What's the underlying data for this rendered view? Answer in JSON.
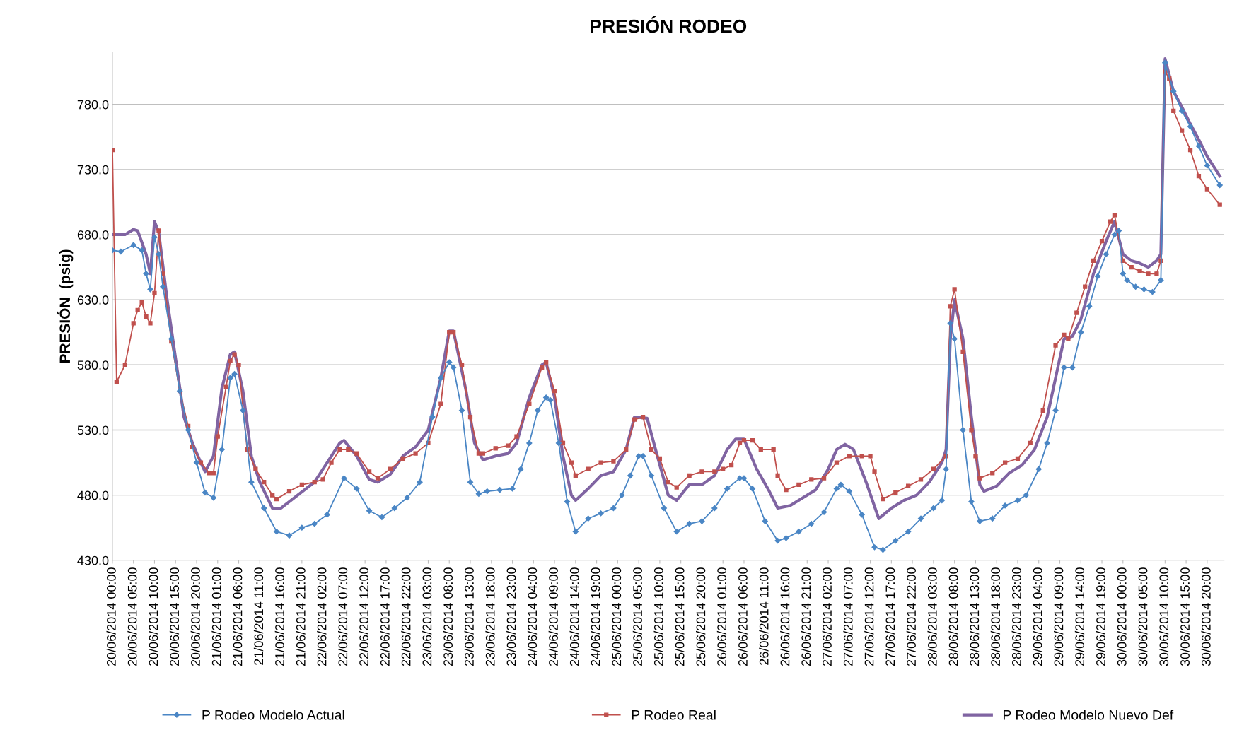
{
  "chart_data": {
    "type": "line",
    "title": "PRESIÓN RODEO",
    "ylabel": "PRESIÓN  (psig)",
    "ylim": [
      430,
      820
    ],
    "yticks": [
      {
        "value": 430,
        "label": "430.0"
      },
      {
        "value": 480,
        "label": "480.0"
      },
      {
        "value": 530,
        "label": "530.0"
      },
      {
        "value": 580,
        "label": "580.0"
      },
      {
        "value": 630,
        "label": "630.0"
      },
      {
        "value": 680,
        "label": "680.0"
      },
      {
        "value": 730,
        "label": "730.0"
      },
      {
        "value": 780,
        "label": "780.0"
      }
    ],
    "xlim": [
      "2014-06-20T00:00",
      "2014-07-01T00:00"
    ],
    "xticks": [
      {
        "value": "2014-06-20T00:00",
        "label": "20/06/2014 00:00"
      },
      {
        "value": "2014-06-20T05:00",
        "label": "20/06/2014 05:00"
      },
      {
        "value": "2014-06-20T10:00",
        "label": "20/06/2014 10:00"
      },
      {
        "value": "2014-06-20T15:00",
        "label": "20/06/2014 15:00"
      },
      {
        "value": "2014-06-20T20:00",
        "label": "20/06/2014 20:00"
      },
      {
        "value": "2014-06-21T01:00",
        "label": "21/06/2014 01:00"
      },
      {
        "value": "2014-06-21T06:00",
        "label": "21/06/2014 06:00"
      },
      {
        "value": "2014-06-21T11:00",
        "label": "21/06/2014 11:00"
      },
      {
        "value": "2014-06-21T16:00",
        "label": "21/06/2014 16:00"
      },
      {
        "value": "2014-06-21T21:00",
        "label": "21/06/2014 21:00"
      },
      {
        "value": "2014-06-22T02:00",
        "label": "22/06/2014 02:00"
      },
      {
        "value": "2014-06-22T07:00",
        "label": "22/06/2014 07:00"
      },
      {
        "value": "2014-06-22T12:00",
        "label": "22/06/2014 12:00"
      },
      {
        "value": "2014-06-22T17:00",
        "label": "22/06/2014 17:00"
      },
      {
        "value": "2014-06-22T22:00",
        "label": "22/06/2014 22:00"
      },
      {
        "value": "2014-06-23T03:00",
        "label": "23/06/2014 03:00"
      },
      {
        "value": "2014-06-23T08:00",
        "label": "23/06/2014 08:00"
      },
      {
        "value": "2014-06-23T13:00",
        "label": "23/06/2014 13:00"
      },
      {
        "value": "2014-06-23T18:00",
        "label": "23/06/2014 18:00"
      },
      {
        "value": "2014-06-23T23:00",
        "label": "23/06/2014 23:00"
      },
      {
        "value": "2014-06-24T04:00",
        "label": "24/06/2014 04:00"
      },
      {
        "value": "2014-06-24T09:00",
        "label": "24/06/2014 09:00"
      },
      {
        "value": "2014-06-24T14:00",
        "label": "24/06/2014 14:00"
      },
      {
        "value": "2014-06-24T19:00",
        "label": "24/06/2014 19:00"
      },
      {
        "value": "2014-06-25T00:00",
        "label": "25/06/2014 00:00"
      },
      {
        "value": "2014-06-25T05:00",
        "label": "25/06/2014 05:00"
      },
      {
        "value": "2014-06-25T10:00",
        "label": "25/06/2014 10:00"
      },
      {
        "value": "2014-06-25T15:00",
        "label": "25/06/2014 15:00"
      },
      {
        "value": "2014-06-25T20:00",
        "label": "25/06/2014 20:00"
      },
      {
        "value": "2014-06-26T01:00",
        "label": "26/06/2014 01:00"
      },
      {
        "value": "2014-06-26T06:00",
        "label": "26/06/2014 06:00"
      },
      {
        "value": "2014-06-26T11:00",
        "label": "26/06/2014 11:00"
      },
      {
        "value": "2014-06-26T16:00",
        "label": "26/06/2014 16:00"
      },
      {
        "value": "2014-06-26T21:00",
        "label": "26/06/2014 21:00"
      },
      {
        "value": "2014-06-27T02:00",
        "label": "27/06/2014 02:00"
      },
      {
        "value": "2014-06-27T07:00",
        "label": "27/06/2014 07:00"
      },
      {
        "value": "2014-06-27T12:00",
        "label": "27/06/2014 12:00"
      },
      {
        "value": "2014-06-27T17:00",
        "label": "27/06/2014 17:00"
      },
      {
        "value": "2014-06-27T22:00",
        "label": "27/06/2014 22:00"
      },
      {
        "value": "2014-06-28T03:00",
        "label": "28/06/2014 03:00"
      },
      {
        "value": "2014-06-28T08:00",
        "label": "28/06/2014 08:00"
      },
      {
        "value": "2014-06-28T13:00",
        "label": "28/06/2014 13:00"
      },
      {
        "value": "2014-06-28T18:00",
        "label": "28/06/2014 18:00"
      },
      {
        "value": "2014-06-28T23:00",
        "label": "28/06/2014 23:00"
      },
      {
        "value": "2014-06-29T04:00",
        "label": "29/06/2014 04:00"
      },
      {
        "value": "2014-06-29T09:00",
        "label": "29/06/2014 09:00"
      },
      {
        "value": "2014-06-29T14:00",
        "label": "29/06/2014 14:00"
      },
      {
        "value": "2014-06-29T19:00",
        "label": "29/06/2014 19:00"
      },
      {
        "value": "2014-06-30T00:00",
        "label": "30/06/2014 00:00"
      },
      {
        "value": "2014-06-30T05:00",
        "label": "30/06/2014 05:00"
      },
      {
        "value": "2014-06-30T10:00",
        "label": "30/06/2014 10:00"
      },
      {
        "value": "2014-06-30T15:00",
        "label": "30/06/2014 15:00"
      },
      {
        "value": "2014-06-30T20:00",
        "label": "30/06/2014 20:00"
      }
    ],
    "grid": "y",
    "legend": "bottom",
    "series": [
      {
        "name": "P Rodeo Modelo Actual",
        "color": "#4a86c5",
        "marker": "diamond",
        "x": [
          "2014-06-20T00:00",
          "2014-06-20T02:00",
          "2014-06-20T05:00",
          "2014-06-20T07:00",
          "2014-06-20T08:00",
          "2014-06-20T09:00",
          "2014-06-20T10:00",
          "2014-06-20T11:00",
          "2014-06-20T12:00",
          "2014-06-20T14:00",
          "2014-06-20T16:00",
          "2014-06-20T18:00",
          "2014-06-20T20:00",
          "2014-06-20T22:00",
          "2014-06-21T00:00",
          "2014-06-21T02:00",
          "2014-06-21T04:00",
          "2014-06-21T05:00",
          "2014-06-21T07:00",
          "2014-06-21T09:00",
          "2014-06-21T12:00",
          "2014-06-21T15:00",
          "2014-06-21T18:00",
          "2014-06-21T21:00",
          "2014-06-22T00:00",
          "2014-06-22T03:00",
          "2014-06-22T07:00",
          "2014-06-22T10:00",
          "2014-06-22T13:00",
          "2014-06-22T16:00",
          "2014-06-22T19:00",
          "2014-06-22T22:00",
          "2014-06-23T01:00",
          "2014-06-23T04:00",
          "2014-06-23T06:00",
          "2014-06-23T08:00",
          "2014-06-23T09:00",
          "2014-06-23T11:00",
          "2014-06-23T13:00",
          "2014-06-23T15:00",
          "2014-06-23T17:00",
          "2014-06-23T20:00",
          "2014-06-23T23:00",
          "2014-06-24T01:00",
          "2014-06-24T03:00",
          "2014-06-24T05:00",
          "2014-06-24T07:00",
          "2014-06-24T08:00",
          "2014-06-24T10:00",
          "2014-06-24T12:00",
          "2014-06-24T14:00",
          "2014-06-24T17:00",
          "2014-06-24T20:00",
          "2014-06-24T23:00",
          "2014-06-25T01:00",
          "2014-06-25T03:00",
          "2014-06-25T05:00",
          "2014-06-25T06:00",
          "2014-06-25T08:00",
          "2014-06-25T11:00",
          "2014-06-25T14:00",
          "2014-06-25T17:00",
          "2014-06-25T20:00",
          "2014-06-25T23:00",
          "2014-06-26T02:00",
          "2014-06-26T05:00",
          "2014-06-26T06:00",
          "2014-06-26T08:00",
          "2014-06-26T11:00",
          "2014-06-26T14:00",
          "2014-06-26T16:00",
          "2014-06-26T19:00",
          "2014-06-26T22:00",
          "2014-06-27T01:00",
          "2014-06-27T04:00",
          "2014-06-27T05:00",
          "2014-06-27T07:00",
          "2014-06-27T10:00",
          "2014-06-27T13:00",
          "2014-06-27T15:00",
          "2014-06-27T18:00",
          "2014-06-27T21:00",
          "2014-06-28T00:00",
          "2014-06-28T03:00",
          "2014-06-28T05:00",
          "2014-06-28T06:00",
          "2014-06-28T07:00",
          "2014-06-28T08:00",
          "2014-06-28T10:00",
          "2014-06-28T12:00",
          "2014-06-28T14:00",
          "2014-06-28T17:00",
          "2014-06-28T20:00",
          "2014-06-28T23:00",
          "2014-06-29T01:00",
          "2014-06-29T04:00",
          "2014-06-29T06:00",
          "2014-06-29T08:00",
          "2014-06-29T10:00",
          "2014-06-29T12:00",
          "2014-06-29T14:00",
          "2014-06-29T16:00",
          "2014-06-29T18:00",
          "2014-06-29T20:00",
          "2014-06-29T22:00",
          "2014-06-29T23:00",
          "2014-06-30T00:00",
          "2014-06-30T01:00",
          "2014-06-30T03:00",
          "2014-06-30T05:00",
          "2014-06-30T07:00",
          "2014-06-30T09:00",
          "2014-06-30T10:00",
          "2014-06-30T12:00",
          "2014-06-30T14:00",
          "2014-06-30T16:00",
          "2014-06-30T18:00",
          "2014-06-30T20:00",
          "2014-06-30T23:00"
        ],
        "values": [
          668,
          667,
          672,
          668,
          650,
          638,
          678,
          665,
          640,
          600,
          560,
          530,
          505,
          482,
          478,
          515,
          570,
          573,
          545,
          490,
          470,
          452,
          449,
          455,
          458,
          465,
          493,
          485,
          468,
          463,
          470,
          478,
          490,
          540,
          570,
          582,
          578,
          545,
          490,
          481,
          483,
          484,
          485,
          500,
          520,
          545,
          555,
          553,
          520,
          475,
          452,
          462,
          466,
          470,
          480,
          495,
          510,
          510,
          495,
          470,
          452,
          458,
          460,
          470,
          485,
          493,
          493,
          485,
          460,
          445,
          447,
          452,
          458,
          467,
          485,
          488,
          483,
          465,
          440,
          438,
          445,
          452,
          462,
          470,
          476,
          500,
          612,
          600,
          530,
          475,
          460,
          462,
          472,
          476,
          480,
          500,
          520,
          545,
          578,
          578,
          605,
          625,
          648,
          665,
          680,
          683,
          650,
          645,
          640,
          638,
          636,
          645,
          812,
          790,
          775,
          763,
          748,
          733,
          718
        ]
      },
      {
        "name": "P Rodeo Real",
        "color": "#c0504d",
        "marker": "square",
        "x": [
          "2014-06-20T00:00",
          "2014-06-20T01:00",
          "2014-06-20T03:00",
          "2014-06-20T05:00",
          "2014-06-20T06:00",
          "2014-06-20T07:00",
          "2014-06-20T08:00",
          "2014-06-20T09:00",
          "2014-06-20T10:00",
          "2014-06-20T11:00",
          "2014-06-20T12:00",
          "2014-06-20T14:00",
          "2014-06-20T16:00",
          "2014-06-20T18:00",
          "2014-06-20T19:00",
          "2014-06-20T21:00",
          "2014-06-20T23:00",
          "2014-06-21T00:00",
          "2014-06-21T01:00",
          "2014-06-21T03:00",
          "2014-06-21T04:00",
          "2014-06-21T05:00",
          "2014-06-21T06:00",
          "2014-06-21T08:00",
          "2014-06-21T10:00",
          "2014-06-21T12:00",
          "2014-06-21T14:00",
          "2014-06-21T15:00",
          "2014-06-21T18:00",
          "2014-06-21T21:00",
          "2014-06-22T00:00",
          "2014-06-22T02:00",
          "2014-06-22T04:00",
          "2014-06-22T06:00",
          "2014-06-22T08:00",
          "2014-06-22T10:00",
          "2014-06-22T13:00",
          "2014-06-22T15:00",
          "2014-06-22T18:00",
          "2014-06-22T21:00",
          "2014-06-23T00:00",
          "2014-06-23T03:00",
          "2014-06-23T06:00",
          "2014-06-23T08:00",
          "2014-06-23T09:00",
          "2014-06-23T11:00",
          "2014-06-23T13:00",
          "2014-06-23T15:00",
          "2014-06-23T16:00",
          "2014-06-23T19:00",
          "2014-06-23T22:00",
          "2014-06-24T00:00",
          "2014-06-24T03:00",
          "2014-06-24T06:00",
          "2014-06-24T07:00",
          "2014-06-24T09:00",
          "2014-06-24T11:00",
          "2014-06-24T13:00",
          "2014-06-24T14:00",
          "2014-06-24T17:00",
          "2014-06-24T20:00",
          "2014-06-24T23:00",
          "2014-06-25T02:00",
          "2014-06-25T04:00",
          "2014-06-25T06:00",
          "2014-06-25T08:00",
          "2014-06-25T10:00",
          "2014-06-25T12:00",
          "2014-06-25T14:00",
          "2014-06-25T17:00",
          "2014-06-25T20:00",
          "2014-06-25T23:00",
          "2014-06-26T01:00",
          "2014-06-26T03:00",
          "2014-06-26T05:00",
          "2014-06-26T06:00",
          "2014-06-26T08:00",
          "2014-06-26T10:00",
          "2014-06-26T13:00",
          "2014-06-26T14:00",
          "2014-06-26T16:00",
          "2014-06-26T19:00",
          "2014-06-26T22:00",
          "2014-06-27T01:00",
          "2014-06-27T04:00",
          "2014-06-27T07:00",
          "2014-06-27T10:00",
          "2014-06-27T12:00",
          "2014-06-27T13:00",
          "2014-06-27T15:00",
          "2014-06-27T18:00",
          "2014-06-27T21:00",
          "2014-06-28T00:00",
          "2014-06-28T03:00",
          "2014-06-28T06:00",
          "2014-06-28T07:00",
          "2014-06-28T08:00",
          "2014-06-28T10:00",
          "2014-06-28T12:00",
          "2014-06-28T13:00",
          "2014-06-28T14:00",
          "2014-06-28T17:00",
          "2014-06-28T20:00",
          "2014-06-28T23:00",
          "2014-06-29T02:00",
          "2014-06-29T05:00",
          "2014-06-29T08:00",
          "2014-06-29T10:00",
          "2014-06-29T11:00",
          "2014-06-29T13:00",
          "2014-06-29T15:00",
          "2014-06-29T17:00",
          "2014-06-29T19:00",
          "2014-06-29T21:00",
          "2014-06-29T22:00",
          "2014-06-30T00:00",
          "2014-06-30T02:00",
          "2014-06-30T04:00",
          "2014-06-30T06:00",
          "2014-06-30T08:00",
          "2014-06-30T09:00",
          "2014-06-30T10:00",
          "2014-06-30T11:00",
          "2014-06-30T12:00",
          "2014-06-30T14:00",
          "2014-06-30T16:00",
          "2014-06-30T18:00",
          "2014-06-30T20:00",
          "2014-06-30T23:00"
        ],
        "values": [
          745,
          567,
          580,
          612,
          622,
          628,
          617,
          612,
          635,
          683,
          650,
          598,
          560,
          533,
          517,
          505,
          497,
          497,
          525,
          563,
          583,
          588,
          580,
          515,
          500,
          490,
          480,
          477,
          483,
          488,
          490,
          492,
          505,
          515,
          515,
          512,
          498,
          493,
          500,
          508,
          512,
          520,
          550,
          605,
          605,
          580,
          540,
          512,
          512,
          516,
          518,
          525,
          550,
          578,
          582,
          560,
          520,
          505,
          495,
          500,
          505,
          506,
          515,
          538,
          540,
          515,
          508,
          490,
          486,
          495,
          498,
          498,
          500,
          503,
          520,
          522,
          522,
          515,
          515,
          495,
          484,
          488,
          492,
          493,
          505,
          510,
          510,
          510,
          498,
          477,
          482,
          487,
          492,
          500,
          510,
          625,
          638,
          590,
          530,
          510,
          493,
          497,
          505,
          508,
          520,
          545,
          595,
          603,
          600,
          620,
          640,
          660,
          675,
          690,
          695,
          660,
          655,
          652,
          650,
          650,
          660,
          805,
          800,
          775,
          760,
          745,
          725,
          715,
          703
        ]
      },
      {
        "name": "P Rodeo Modelo Nuevo Def",
        "color": "#8064a2",
        "marker": "none",
        "x": [
          "2014-06-20T00:00",
          "2014-06-20T03:00",
          "2014-06-20T05:00",
          "2014-06-20T06:00",
          "2014-06-20T08:00",
          "2014-06-20T09:00",
          "2014-06-20T10:00",
          "2014-06-20T11:00",
          "2014-06-20T13:00",
          "2014-06-20T15:00",
          "2014-06-20T17:00",
          "2014-06-20T19:00",
          "2014-06-20T21:00",
          "2014-06-20T22:00",
          "2014-06-21T00:00",
          "2014-06-21T02:00",
          "2014-06-21T04:00",
          "2014-06-21T05:00",
          "2014-06-21T07:00",
          "2014-06-21T09:00",
          "2014-06-21T11:00",
          "2014-06-21T14:00",
          "2014-06-21T16:00",
          "2014-06-21T20:00",
          "2014-06-22T00:00",
          "2014-06-22T03:00",
          "2014-06-22T06:00",
          "2014-06-22T07:00",
          "2014-06-22T10:00",
          "2014-06-22T13:00",
          "2014-06-22T15:00",
          "2014-06-22T18:00",
          "2014-06-22T21:00",
          "2014-06-23T00:00",
          "2014-06-23T03:00",
          "2014-06-23T06:00",
          "2014-06-23T08:00",
          "2014-06-23T09:00",
          "2014-06-23T12:00",
          "2014-06-23T14:00",
          "2014-06-23T16:00",
          "2014-06-23T19:00",
          "2014-06-23T22:00",
          "2014-06-24T00:00",
          "2014-06-24T03:00",
          "2014-06-24T06:00",
          "2014-06-24T07:00",
          "2014-06-24T09:00",
          "2014-06-24T11:00",
          "2014-06-24T13:00",
          "2014-06-24T14:00",
          "2014-06-24T17:00",
          "2014-06-24T20:00",
          "2014-06-24T23:00",
          "2014-06-25T02:00",
          "2014-06-25T04:00",
          "2014-06-25T07:00",
          "2014-06-25T09:00",
          "2014-06-25T12:00",
          "2014-06-25T14:00",
          "2014-06-25T17:00",
          "2014-06-25T20:00",
          "2014-06-25T23:00",
          "2014-06-26T02:00",
          "2014-06-26T04:00",
          "2014-06-26T06:00",
          "2014-06-26T09:00",
          "2014-06-26T12:00",
          "2014-06-26T14:00",
          "2014-06-26T17:00",
          "2014-06-26T20:00",
          "2014-06-26T23:00",
          "2014-06-27T02:00",
          "2014-06-27T04:00",
          "2014-06-27T06:00",
          "2014-06-27T08:00",
          "2014-06-27T11:00",
          "2014-06-27T14:00",
          "2014-06-27T17:00",
          "2014-06-27T20:00",
          "2014-06-27T23:00",
          "2014-06-28T02:00",
          "2014-06-28T05:00",
          "2014-06-28T06:00",
          "2014-06-28T07:00",
          "2014-06-28T08:00",
          "2014-06-28T10:00",
          "2014-06-28T12:00",
          "2014-06-28T14:00",
          "2014-06-28T15:00",
          "2014-06-28T18:00",
          "2014-06-28T21:00",
          "2014-06-29T00:00",
          "2014-06-29T03:00",
          "2014-06-29T06:00",
          "2014-06-29T09:00",
          "2014-06-29T10:00",
          "2014-06-29T12:00",
          "2014-06-29T14:00",
          "2014-06-29T17:00",
          "2014-06-29T20:00",
          "2014-06-29T22:00",
          "2014-06-30T00:00",
          "2014-06-30T02:00",
          "2014-06-30T04:00",
          "2014-06-30T06:00",
          "2014-06-30T08:00",
          "2014-06-30T09:00",
          "2014-06-30T10:00",
          "2014-06-30T12:00",
          "2014-06-30T14:00",
          "2014-06-30T16:00",
          "2014-06-30T18:00",
          "2014-06-30T20:00",
          "2014-06-30T23:00"
        ],
        "values": [
          680,
          680,
          684,
          683,
          665,
          650,
          690,
          682,
          630,
          585,
          540,
          520,
          505,
          498,
          510,
          562,
          588,
          590,
          560,
          510,
          490,
          470,
          470,
          480,
          490,
          505,
          520,
          522,
          510,
          492,
          490,
          496,
          510,
          517,
          530,
          570,
          606,
          606,
          560,
          520,
          507,
          510,
          512,
          520,
          555,
          580,
          582,
          555,
          510,
          480,
          476,
          485,
          495,
          498,
          515,
          540,
          539,
          515,
          480,
          476,
          488,
          488,
          495,
          515,
          523,
          523,
          500,
          483,
          470,
          472,
          478,
          484,
          500,
          515,
          519,
          515,
          490,
          462,
          470,
          476,
          480,
          490,
          505,
          515,
          600,
          630,
          600,
          540,
          488,
          483,
          487,
          497,
          503,
          515,
          540,
          585,
          600,
          602,
          615,
          650,
          675,
          690,
          665,
          660,
          658,
          655,
          660,
          665,
          815,
          790,
          778,
          765,
          753,
          740,
          725
        ]
      }
    ]
  }
}
